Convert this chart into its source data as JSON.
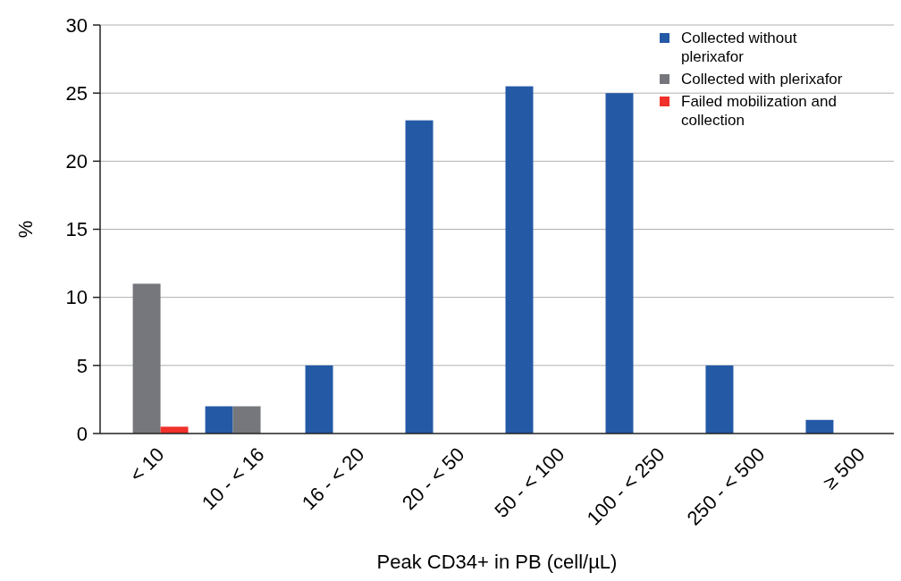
{
  "chart_data": {
    "type": "bar",
    "xlabel": "Peak CD34+ in PB (cell/µL)",
    "ylabel": "%",
    "categories": [
      "< 10",
      "10 - < 16",
      "16 - < 20",
      "20 - < 50",
      "50 - < 100",
      "100 - < 250",
      "250 - < 500",
      "≥ 500"
    ],
    "series": [
      {
        "name": "Collected without plerixafor",
        "color": "#2459a6",
        "values": [
          null,
          2,
          5,
          23,
          25.5,
          25,
          5,
          1
        ]
      },
      {
        "name": "Collected with plerixafor",
        "color": "#75777c",
        "values": [
          11,
          2,
          null,
          null,
          null,
          null,
          null,
          null
        ]
      },
      {
        "name": "Failed mobilization and collection",
        "color": "#f0302a",
        "values": [
          0.5,
          null,
          null,
          null,
          null,
          null,
          null,
          null
        ]
      }
    ],
    "ylim": [
      0,
      30
    ],
    "yticks": [
      0,
      5,
      10,
      15,
      20,
      25,
      30
    ],
    "grid": "y",
    "legend": "top right"
  }
}
